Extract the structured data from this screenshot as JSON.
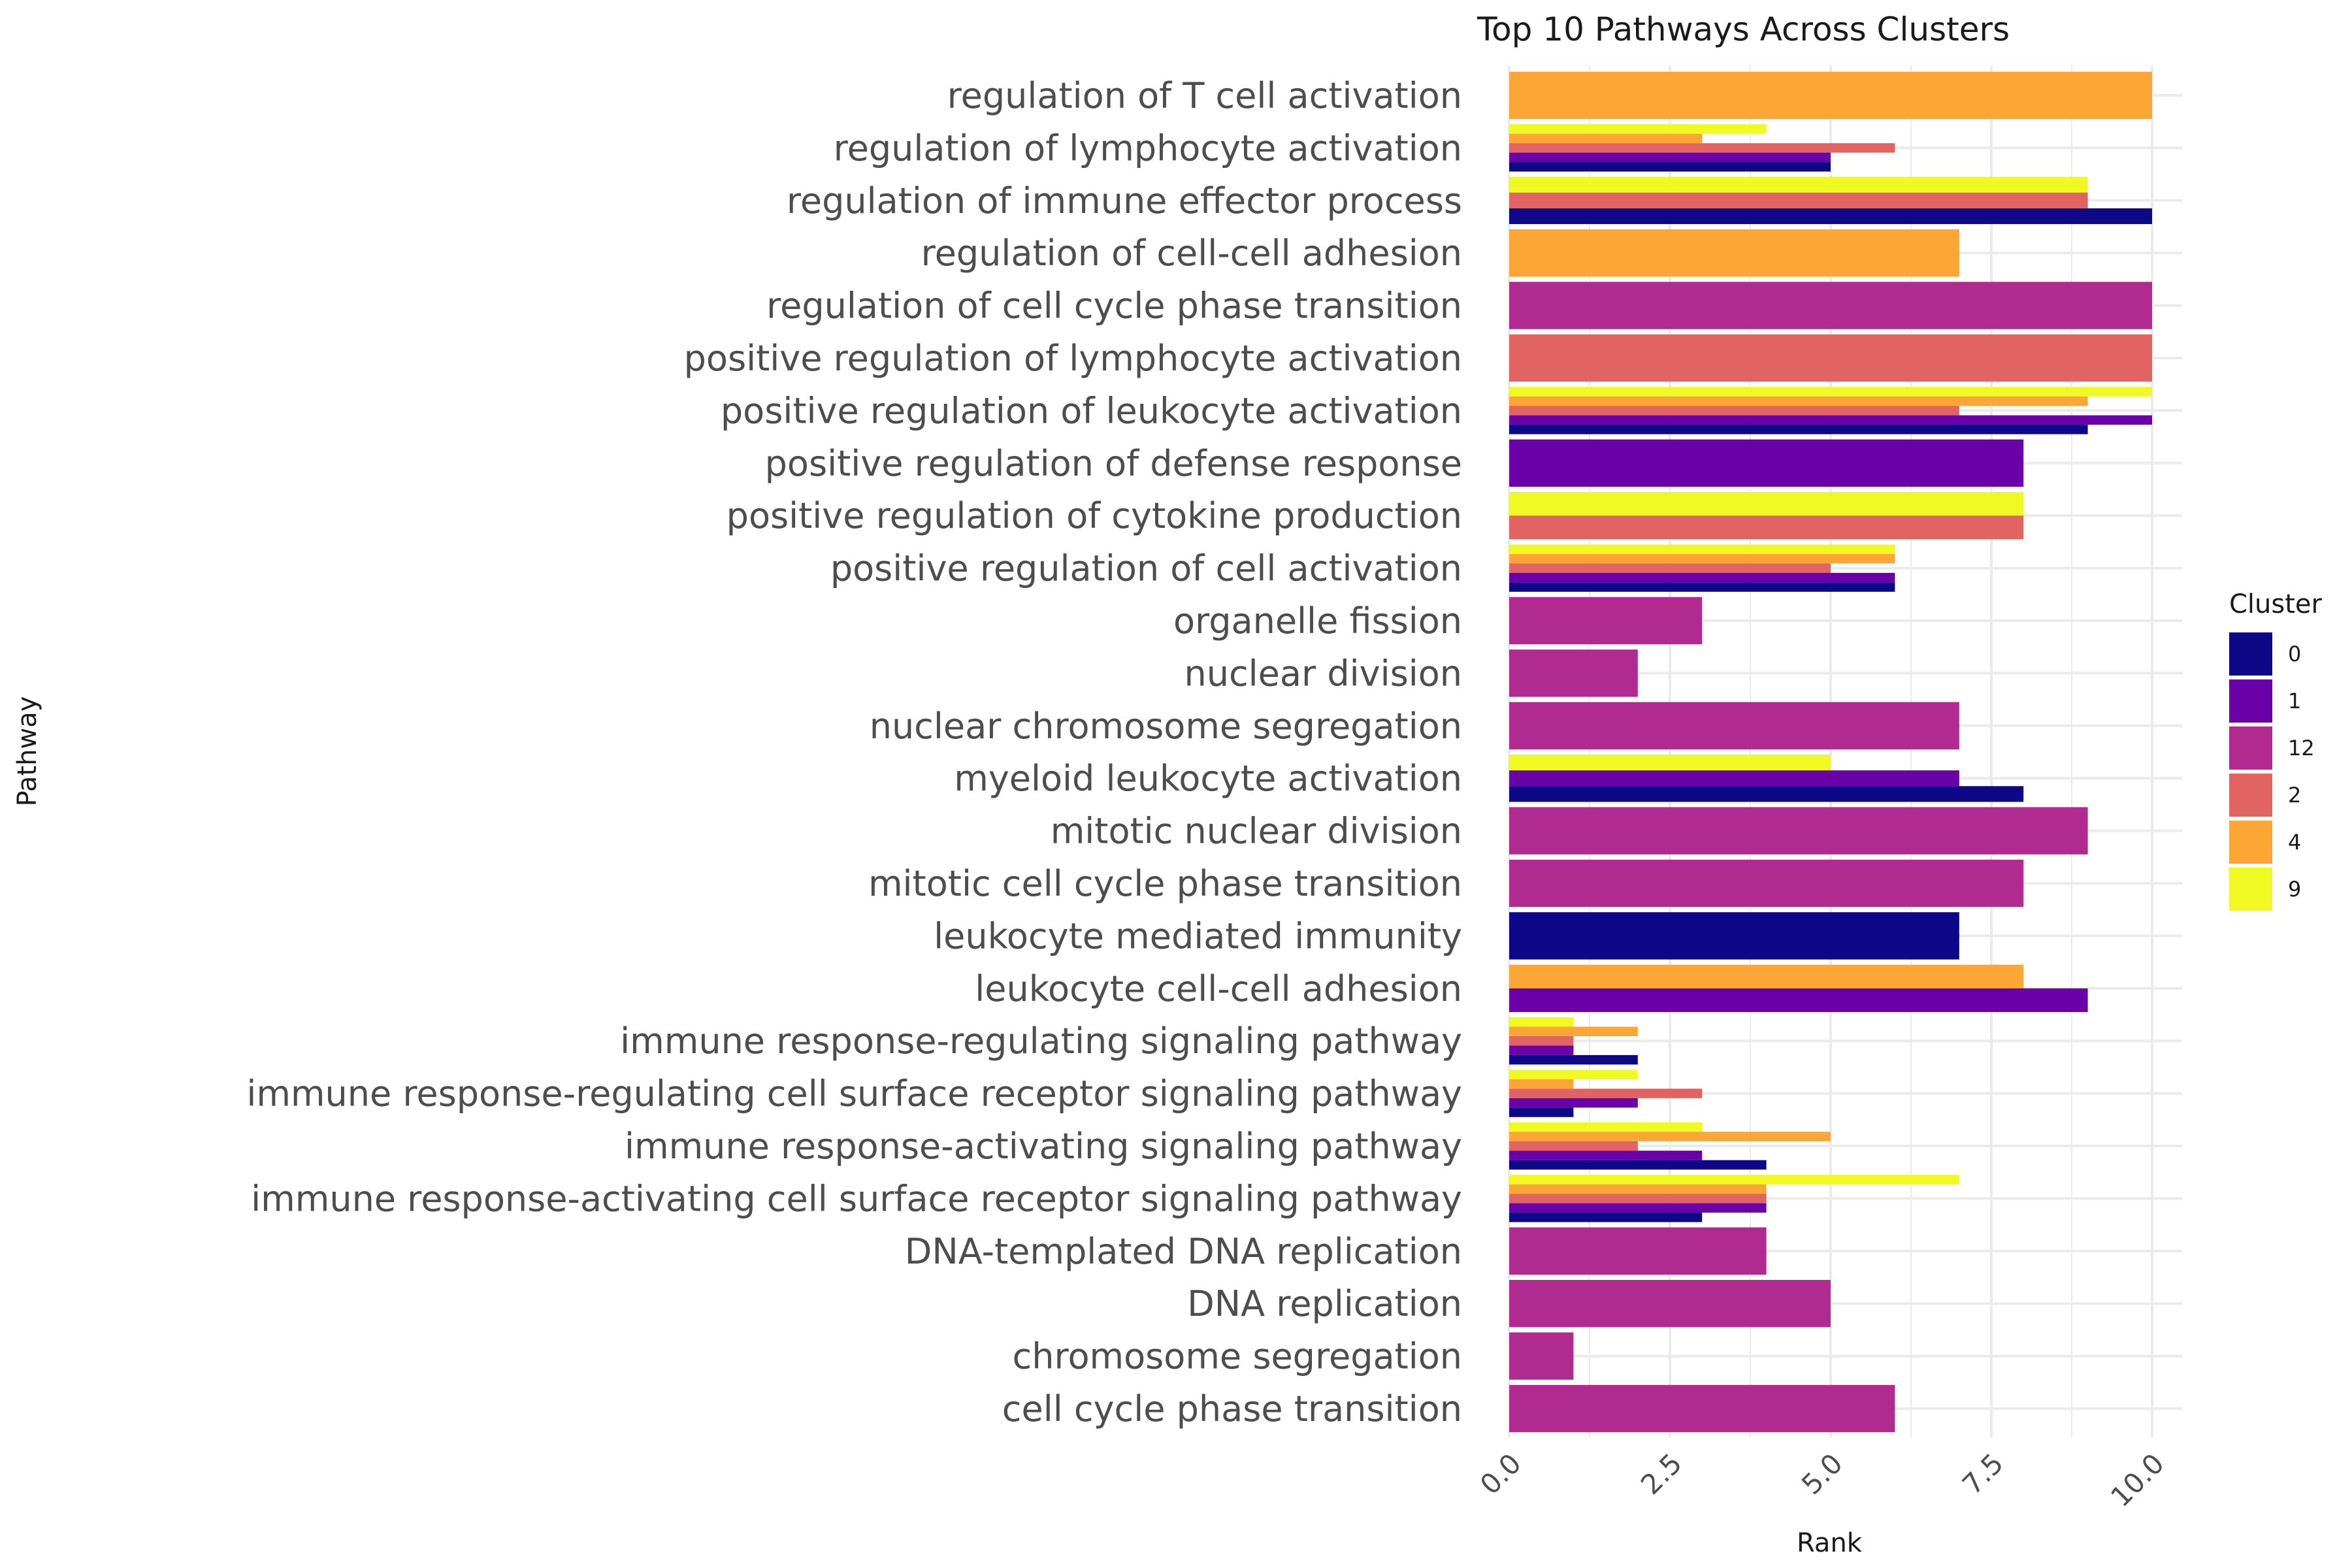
{
  "chart_data": {
    "type": "bar",
    "orientation": "horizontal",
    "title": "Top 10 Pathways Across Clusters",
    "xlabel": "Rank",
    "ylabel": "Pathway",
    "xlim": [
      0,
      10.5
    ],
    "xticks": [
      "0.0",
      "2.5",
      "5.0",
      "7.5",
      "10.0"
    ],
    "xtick_values": [
      0,
      2.5,
      5,
      7.5,
      10
    ],
    "grid": true,
    "legend": {
      "title": "Cluster",
      "placement": "right",
      "entries": [
        {
          "name": "0",
          "color": "#0d0887"
        },
        {
          "name": "1",
          "color": "#6a00a8"
        },
        {
          "name": "12",
          "color": "#b12a90"
        },
        {
          "name": "2",
          "color": "#e16462"
        },
        {
          "name": "4",
          "color": "#fca636"
        },
        {
          "name": "9",
          "color": "#f0f921"
        }
      ]
    },
    "categories": [
      {
        "label": "regulation of T cell activation",
        "bars": [
          {
            "cluster": "4",
            "value": 10
          }
        ]
      },
      {
        "label": "regulation of lymphocyte activation",
        "bars": [
          {
            "cluster": "0",
            "value": 5
          },
          {
            "cluster": "1",
            "value": 5
          },
          {
            "cluster": "2",
            "value": 6
          },
          {
            "cluster": "4",
            "value": 3
          },
          {
            "cluster": "9",
            "value": 4
          }
        ]
      },
      {
        "label": "regulation of immune effector process",
        "bars": [
          {
            "cluster": "0",
            "value": 10
          },
          {
            "cluster": "2",
            "value": 9
          },
          {
            "cluster": "9",
            "value": 9
          }
        ]
      },
      {
        "label": "regulation of cell-cell adhesion",
        "bars": [
          {
            "cluster": "4",
            "value": 7
          }
        ]
      },
      {
        "label": "regulation of cell cycle phase transition",
        "bars": [
          {
            "cluster": "12",
            "value": 10
          }
        ]
      },
      {
        "label": "positive regulation of lymphocyte activation",
        "bars": [
          {
            "cluster": "2",
            "value": 10
          }
        ]
      },
      {
        "label": "positive regulation of leukocyte activation",
        "bars": [
          {
            "cluster": "0",
            "value": 9
          },
          {
            "cluster": "1",
            "value": 10
          },
          {
            "cluster": "2",
            "value": 7
          },
          {
            "cluster": "4",
            "value": 9
          },
          {
            "cluster": "9",
            "value": 10
          }
        ]
      },
      {
        "label": "positive regulation of defense response",
        "bars": [
          {
            "cluster": "1",
            "value": 8
          }
        ]
      },
      {
        "label": "positive regulation of cytokine production",
        "bars": [
          {
            "cluster": "2",
            "value": 8
          },
          {
            "cluster": "9",
            "value": 8
          }
        ]
      },
      {
        "label": "positive regulation of cell activation",
        "bars": [
          {
            "cluster": "0",
            "value": 6
          },
          {
            "cluster": "1",
            "value": 6
          },
          {
            "cluster": "2",
            "value": 5
          },
          {
            "cluster": "4",
            "value": 6
          },
          {
            "cluster": "9",
            "value": 6
          }
        ]
      },
      {
        "label": "organelle fission",
        "bars": [
          {
            "cluster": "12",
            "value": 3
          }
        ]
      },
      {
        "label": "nuclear division",
        "bars": [
          {
            "cluster": "12",
            "value": 2
          }
        ]
      },
      {
        "label": "nuclear chromosome segregation",
        "bars": [
          {
            "cluster": "12",
            "value": 7
          }
        ]
      },
      {
        "label": "myeloid leukocyte activation",
        "bars": [
          {
            "cluster": "0",
            "value": 8
          },
          {
            "cluster": "1",
            "value": 7
          },
          {
            "cluster": "9",
            "value": 5
          }
        ]
      },
      {
        "label": "mitotic nuclear division",
        "bars": [
          {
            "cluster": "12",
            "value": 9
          }
        ]
      },
      {
        "label": "mitotic cell cycle phase transition",
        "bars": [
          {
            "cluster": "12",
            "value": 8
          }
        ]
      },
      {
        "label": "leukocyte mediated immunity",
        "bars": [
          {
            "cluster": "0",
            "value": 7
          }
        ]
      },
      {
        "label": "leukocyte cell-cell adhesion",
        "bars": [
          {
            "cluster": "1",
            "value": 9
          },
          {
            "cluster": "4",
            "value": 8
          }
        ]
      },
      {
        "label": "immune response-regulating signaling pathway",
        "bars": [
          {
            "cluster": "0",
            "value": 2
          },
          {
            "cluster": "1",
            "value": 1
          },
          {
            "cluster": "2",
            "value": 1
          },
          {
            "cluster": "4",
            "value": 2
          },
          {
            "cluster": "9",
            "value": 1
          }
        ]
      },
      {
        "label": "immune response-regulating cell surface receptor signaling pathway",
        "bars": [
          {
            "cluster": "0",
            "value": 1
          },
          {
            "cluster": "1",
            "value": 2
          },
          {
            "cluster": "2",
            "value": 3
          },
          {
            "cluster": "4",
            "value": 1
          },
          {
            "cluster": "9",
            "value": 2
          }
        ]
      },
      {
        "label": "immune response-activating signaling pathway",
        "bars": [
          {
            "cluster": "0",
            "value": 4
          },
          {
            "cluster": "1",
            "value": 3
          },
          {
            "cluster": "2",
            "value": 2
          },
          {
            "cluster": "4",
            "value": 5
          },
          {
            "cluster": "9",
            "value": 3
          }
        ]
      },
      {
        "label": "immune response-activating cell surface receptor signaling pathway",
        "bars": [
          {
            "cluster": "0",
            "value": 3
          },
          {
            "cluster": "1",
            "value": 4
          },
          {
            "cluster": "2",
            "value": 4
          },
          {
            "cluster": "4",
            "value": 4
          },
          {
            "cluster": "9",
            "value": 7
          }
        ]
      },
      {
        "label": "DNA-templated DNA replication",
        "bars": [
          {
            "cluster": "12",
            "value": 4
          }
        ]
      },
      {
        "label": "DNA replication",
        "bars": [
          {
            "cluster": "12",
            "value": 5
          }
        ]
      },
      {
        "label": "chromosome segregation",
        "bars": [
          {
            "cluster": "12",
            "value": 1
          }
        ]
      },
      {
        "label": "cell cycle phase transition",
        "bars": [
          {
            "cluster": "12",
            "value": 6
          }
        ]
      }
    ]
  }
}
